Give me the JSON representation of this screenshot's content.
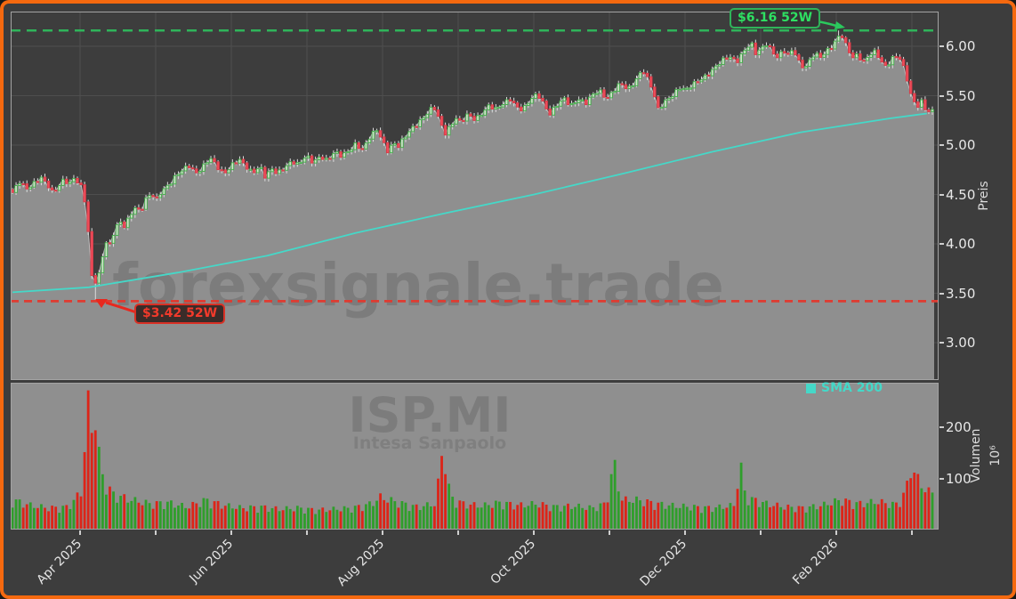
{
  "watermark": {
    "brand": "forexsignale.trade",
    "symbol": "ISP.MI",
    "company": "Intesa Sanpaolo"
  },
  "legend": {
    "sma": {
      "label": "SMA 200",
      "color": "#45d8c8"
    }
  },
  "annotations": {
    "high52w": {
      "label": "$6.16 52W",
      "value": 6.16,
      "text_color": "#2ee062",
      "line_color": "#2fb45a"
    },
    "low52w": {
      "label": "$3.42 52W",
      "value": 3.42,
      "text_color": "#f23a2b",
      "line_color": "#df3b31"
    }
  },
  "axes": {
    "price": {
      "name": "Preis",
      "tick_labels": [
        "3.00",
        "3.50",
        "4.00",
        "4.50",
        "5.00",
        "5.50",
        "6.00"
      ],
      "tick_values": [
        3.0,
        3.5,
        4.0,
        4.5,
        5.0,
        5.5,
        6.0
      ]
    },
    "volume": {
      "name": "Volumen",
      "unit": "10⁶",
      "tick_labels": [
        "100",
        "200"
      ],
      "tick_values": [
        100,
        200
      ]
    },
    "x": {
      "tick_labels": [
        "Apr 2025",
        "Jun 2025",
        "Aug 2025",
        "Oct 2025",
        "Dec 2025",
        "Feb 2026"
      ],
      "months_shown": 12
    }
  },
  "chart_data": {
    "type": "candlestick",
    "symbol": "ISP.MI",
    "panels": [
      "price",
      "volume"
    ],
    "price_range_shown": [
      2.62,
      6.35
    ],
    "volume_range_shown_millions": [
      0,
      287
    ],
    "high_52w": 6.16,
    "low_52w": 3.42,
    "sma_period_label": "SMA 200",
    "close_anchors": [
      [
        0.0,
        4.52
      ],
      [
        0.008,
        4.62
      ],
      [
        0.015,
        4.55
      ],
      [
        0.023,
        4.62
      ],
      [
        0.031,
        4.68
      ],
      [
        0.039,
        4.58
      ],
      [
        0.044,
        4.5
      ],
      [
        0.05,
        4.58
      ],
      [
        0.056,
        4.66
      ],
      [
        0.062,
        4.62
      ],
      [
        0.068,
        4.68
      ],
      [
        0.072,
        4.6
      ],
      [
        0.076,
        4.55
      ],
      [
        0.08,
        4.35
      ],
      [
        0.083,
        4.05
      ],
      [
        0.086,
        3.68
      ],
      [
        0.089,
        3.55
      ],
      [
        0.092,
        3.75
      ],
      [
        0.095,
        3.68
      ],
      [
        0.099,
        3.95
      ],
      [
        0.103,
        4.05
      ],
      [
        0.106,
        3.98
      ],
      [
        0.11,
        4.1
      ],
      [
        0.116,
        4.22
      ],
      [
        0.122,
        4.18
      ],
      [
        0.128,
        4.3
      ],
      [
        0.133,
        4.38
      ],
      [
        0.139,
        4.32
      ],
      [
        0.145,
        4.44
      ],
      [
        0.151,
        4.5
      ],
      [
        0.157,
        4.45
      ],
      [
        0.162,
        4.55
      ],
      [
        0.17,
        4.6
      ],
      [
        0.178,
        4.68
      ],
      [
        0.186,
        4.75
      ],
      [
        0.193,
        4.8
      ],
      [
        0.199,
        4.72
      ],
      [
        0.207,
        4.78
      ],
      [
        0.215,
        4.86
      ],
      [
        0.222,
        4.78
      ],
      [
        0.23,
        4.72
      ],
      [
        0.238,
        4.8
      ],
      [
        0.246,
        4.85
      ],
      [
        0.253,
        4.78
      ],
      [
        0.261,
        4.72
      ],
      [
        0.269,
        4.8
      ],
      [
        0.275,
        4.68
      ],
      [
        0.282,
        4.75
      ],
      [
        0.288,
        4.7
      ],
      [
        0.296,
        4.78
      ],
      [
        0.304,
        4.85
      ],
      [
        0.311,
        4.8
      ],
      [
        0.319,
        4.88
      ],
      [
        0.327,
        4.82
      ],
      [
        0.335,
        4.9
      ],
      [
        0.342,
        4.85
      ],
      [
        0.35,
        4.92
      ],
      [
        0.358,
        4.88
      ],
      [
        0.366,
        4.95
      ],
      [
        0.373,
        5.02
      ],
      [
        0.381,
        4.95
      ],
      [
        0.389,
        5.08
      ],
      [
        0.397,
        5.16
      ],
      [
        0.402,
        5.05
      ],
      [
        0.408,
        4.95
      ],
      [
        0.414,
        5.02
      ],
      [
        0.42,
        4.98
      ],
      [
        0.427,
        5.08
      ],
      [
        0.435,
        5.18
      ],
      [
        0.443,
        5.25
      ],
      [
        0.451,
        5.32
      ],
      [
        0.458,
        5.38
      ],
      [
        0.464,
        5.25
      ],
      [
        0.47,
        5.12
      ],
      [
        0.476,
        5.2
      ],
      [
        0.482,
        5.28
      ],
      [
        0.487,
        5.22
      ],
      [
        0.495,
        5.3
      ],
      [
        0.503,
        5.26
      ],
      [
        0.511,
        5.34
      ],
      [
        0.518,
        5.4
      ],
      [
        0.526,
        5.35
      ],
      [
        0.534,
        5.42
      ],
      [
        0.542,
        5.48
      ],
      [
        0.547,
        5.4
      ],
      [
        0.555,
        5.35
      ],
      [
        0.563,
        5.45
      ],
      [
        0.571,
        5.52
      ],
      [
        0.576,
        5.45
      ],
      [
        0.584,
        5.32
      ],
      [
        0.592,
        5.4
      ],
      [
        0.6,
        5.46
      ],
      [
        0.607,
        5.4
      ],
      [
        0.615,
        5.48
      ],
      [
        0.623,
        5.42
      ],
      [
        0.631,
        5.5
      ],
      [
        0.638,
        5.55
      ],
      [
        0.646,
        5.48
      ],
      [
        0.654,
        5.56
      ],
      [
        0.661,
        5.62
      ],
      [
        0.669,
        5.55
      ],
      [
        0.677,
        5.65
      ],
      [
        0.685,
        5.78
      ],
      [
        0.69,
        5.68
      ],
      [
        0.696,
        5.55
      ],
      [
        0.702,
        5.35
      ],
      [
        0.71,
        5.45
      ],
      [
        0.718,
        5.52
      ],
      [
        0.725,
        5.58
      ],
      [
        0.733,
        5.55
      ],
      [
        0.741,
        5.62
      ],
      [
        0.749,
        5.68
      ],
      [
        0.756,
        5.72
      ],
      [
        0.764,
        5.78
      ],
      [
        0.772,
        5.85
      ],
      [
        0.78,
        5.9
      ],
      [
        0.787,
        5.85
      ],
      [
        0.795,
        5.95
      ],
      [
        0.803,
        6.02
      ],
      [
        0.808,
        5.92
      ],
      [
        0.814,
        5.98
      ],
      [
        0.82,
        6.04
      ],
      [
        0.826,
        5.95
      ],
      [
        0.832,
        5.88
      ],
      [
        0.838,
        5.95
      ],
      [
        0.843,
        5.9
      ],
      [
        0.849,
        5.98
      ],
      [
        0.855,
        5.85
      ],
      [
        0.861,
        5.78
      ],
      [
        0.867,
        5.85
      ],
      [
        0.872,
        5.92
      ],
      [
        0.878,
        5.88
      ],
      [
        0.884,
        5.95
      ],
      [
        0.89,
        6.0
      ],
      [
        0.896,
        6.08
      ],
      [
        0.901,
        6.12
      ],
      [
        0.907,
        5.98
      ],
      [
        0.913,
        5.88
      ],
      [
        0.919,
        5.92
      ],
      [
        0.925,
        5.85
      ],
      [
        0.93,
        5.9
      ],
      [
        0.936,
        5.95
      ],
      [
        0.942,
        5.88
      ],
      [
        0.948,
        5.78
      ],
      [
        0.954,
        5.85
      ],
      [
        0.959,
        5.92
      ],
      [
        0.965,
        5.88
      ],
      [
        0.971,
        5.72
      ],
      [
        0.977,
        5.48
      ],
      [
        0.983,
        5.38
      ],
      [
        0.988,
        5.45
      ],
      [
        0.994,
        5.35
      ]
    ],
    "sma200_anchors": [
      [
        0.0,
        3.51
      ],
      [
        0.083,
        3.56
      ],
      [
        0.18,
        3.71
      ],
      [
        0.277,
        3.88
      ],
      [
        0.373,
        4.11
      ],
      [
        0.47,
        4.31
      ],
      [
        0.567,
        4.5
      ],
      [
        0.663,
        4.71
      ],
      [
        0.76,
        4.93
      ],
      [
        0.857,
        5.13
      ],
      [
        0.954,
        5.27
      ],
      [
        0.994,
        5.32
      ]
    ],
    "volume_anchors_millions": [
      [
        0.0,
        55
      ],
      [
        0.02,
        45
      ],
      [
        0.04,
        40
      ],
      [
        0.06,
        42
      ],
      [
        0.075,
        70
      ],
      [
        0.083,
        262
      ],
      [
        0.086,
        180
      ],
      [
        0.089,
        240
      ],
      [
        0.093,
        150
      ],
      [
        0.099,
        90
      ],
      [
        0.11,
        65
      ],
      [
        0.13,
        55
      ],
      [
        0.15,
        48
      ],
      [
        0.17,
        50
      ],
      [
        0.19,
        42
      ],
      [
        0.21,
        55
      ],
      [
        0.23,
        45
      ],
      [
        0.25,
        40
      ],
      [
        0.27,
        42
      ],
      [
        0.29,
        38
      ],
      [
        0.31,
        40
      ],
      [
        0.33,
        36
      ],
      [
        0.35,
        38
      ],
      [
        0.37,
        40
      ],
      [
        0.39,
        48
      ],
      [
        0.4,
        60
      ],
      [
        0.42,
        50
      ],
      [
        0.44,
        42
      ],
      [
        0.46,
        48
      ],
      [
        0.468,
        155
      ],
      [
        0.476,
        60
      ],
      [
        0.49,
        48
      ],
      [
        0.51,
        44
      ],
      [
        0.53,
        50
      ],
      [
        0.55,
        45
      ],
      [
        0.57,
        48
      ],
      [
        0.59,
        42
      ],
      [
        0.61,
        44
      ],
      [
        0.63,
        40
      ],
      [
        0.645,
        48
      ],
      [
        0.654,
        125
      ],
      [
        0.662,
        55
      ],
      [
        0.68,
        55
      ],
      [
        0.7,
        48
      ],
      [
        0.72,
        44
      ],
      [
        0.74,
        42
      ],
      [
        0.76,
        40
      ],
      [
        0.785,
        45
      ],
      [
        0.791,
        125
      ],
      [
        0.797,
        60
      ],
      [
        0.82,
        48
      ],
      [
        0.84,
        42
      ],
      [
        0.86,
        40
      ],
      [
        0.88,
        45
      ],
      [
        0.9,
        55
      ],
      [
        0.92,
        48
      ],
      [
        0.94,
        52
      ],
      [
        0.96,
        46
      ],
      [
        0.971,
        70
      ],
      [
        0.977,
        120
      ],
      [
        0.983,
        95
      ],
      [
        0.988,
        85
      ],
      [
        0.994,
        70
      ]
    ]
  },
  "colors": {
    "frame": "#f5690f",
    "background": "#3d3d3d",
    "panel_fill": "#8f8f8f",
    "grid": "#4e4e4e",
    "panel_border": "#a3a3a3",
    "price_line": "#bcbcbc",
    "candle_up_stroke": "#3fae46",
    "candle_up_fill": "#d6e4d0",
    "candle_down_stroke": "#d63a47",
    "candle_down_fill": "#ef4e5b",
    "wick": "#dcdcdc",
    "vol_up": "#2f9e2b",
    "vol_down": "#dd2418",
    "sma": "#45d8c8",
    "axis_text": "#e8e8e8"
  }
}
